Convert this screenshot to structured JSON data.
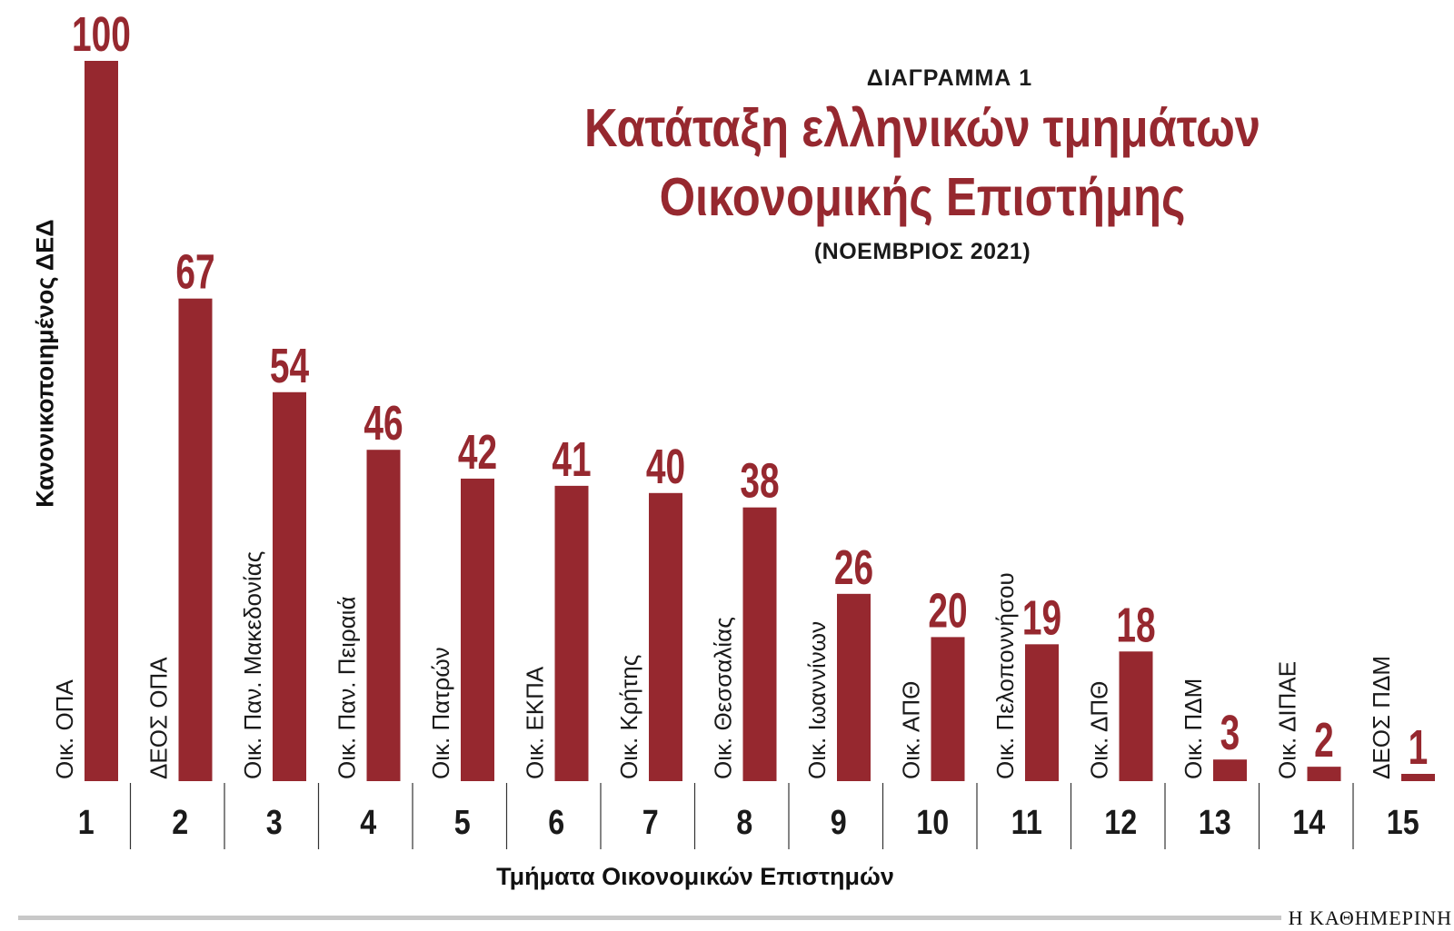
{
  "header": {
    "kicker": "ΔΙΑΓΡΑΜΜΑ 1",
    "title_line1": "Κατάταξη ελληνικών τμημάτων",
    "title_line2": "Οικονομικής Επιστήμης",
    "subtitle": "(ΝΟΕΜΒΡΙΟΣ 2021)"
  },
  "source": "Η ΚΑΘΗΜΕΡΙΝΗ",
  "colors": {
    "bar": "#96282f",
    "value_label": "#96282f",
    "text": "#1a1a1a",
    "divider": "#333333"
  },
  "chart_data": {
    "type": "bar",
    "title": "Κατάταξη ελληνικών τμημάτων Οικονομικής Επιστήμης",
    "subtitle": "(ΝΟΕΜΒΡΙΟΣ 2021)",
    "xlabel": "Τμήματα Οικονομικών Επιστημών",
    "ylabel": "Κανονικοποιημένος ΔΕΔ",
    "ylim": [
      0,
      100
    ],
    "grid": false,
    "categories": [
      "1",
      "2",
      "3",
      "4",
      "5",
      "6",
      "7",
      "8",
      "9",
      "10",
      "11",
      "12",
      "13",
      "14",
      "15"
    ],
    "names": [
      "Οικ. ΟΠΑ",
      "ΔΕΟΣ ΟΠΑ",
      "Οικ. Παν. Μακεδονίας",
      "Οικ. Παν. Πειραιά",
      "Οικ. Πατρών",
      "Οικ. ΕΚΠΑ",
      "Οικ. Κρήτης",
      "Οικ. Θεσσαλίας",
      "Οικ. Ιωαννίνων",
      "Οικ. ΑΠΘ",
      "Οικ. Πελοποννήσου",
      "Οικ. ΔΠΘ",
      "Οικ. ΠΔΜ",
      "Οικ. ΔΙΠΑΕ",
      "ΔΕΟΣ ΠΔΜ"
    ],
    "values": [
      100,
      67,
      54,
      46,
      42,
      41,
      40,
      38,
      26,
      20,
      19,
      18,
      3,
      2,
      1
    ],
    "value_labels": [
      "100",
      "67",
      "54",
      "46",
      "42",
      "41",
      "40",
      "38",
      "26",
      "20",
      "19",
      "18",
      "3",
      "2",
      "1"
    ]
  }
}
